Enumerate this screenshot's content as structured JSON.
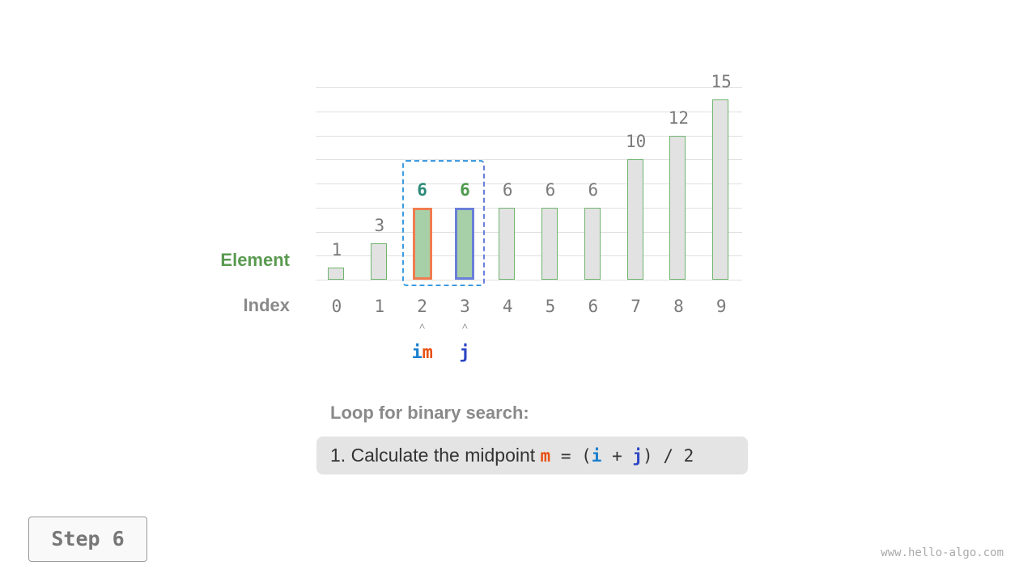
{
  "labels": {
    "element": "Element",
    "index": "Index"
  },
  "array": {
    "values": [
      1,
      3,
      6,
      6,
      6,
      6,
      6,
      10,
      12,
      15
    ],
    "indices": [
      "0",
      "1",
      "2",
      "3",
      "4",
      "5",
      "6",
      "7",
      "8",
      "9"
    ]
  },
  "pointers": {
    "i": {
      "label": "i",
      "index": 2,
      "color": "#1a7fce"
    },
    "m": {
      "label": "m",
      "index": 2,
      "color": "#e8500f"
    },
    "j": {
      "label": "j",
      "index": 3,
      "color": "#2d45c4"
    }
  },
  "search_range": [
    2,
    3
  ],
  "colors": {
    "m_border": "#f07c4f",
    "j_border": "#6a7fd9",
    "highlight_fill": "#a8d0a8",
    "bar_fill": "#e2e2e2",
    "bar_border": "#6fb46f",
    "m_value": "#2e8b7a",
    "j_value": "#4e9a4e"
  },
  "caption": {
    "title": "Loop for binary search:",
    "step_text": "1. Calculate the midpoint ",
    "code": {
      "m": "m",
      "eq": " = (",
      "i": "i",
      "plus": " + ",
      "j": "j",
      "rest": ") / 2"
    }
  },
  "step_button": "Step 6",
  "watermark": "www.hello-algo.com"
}
